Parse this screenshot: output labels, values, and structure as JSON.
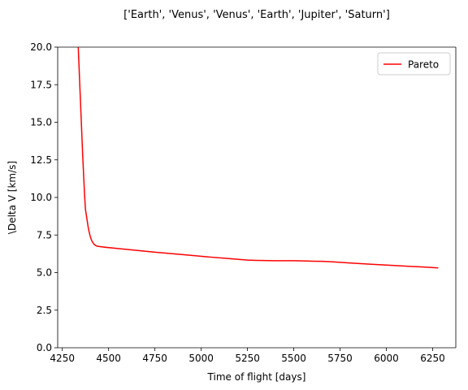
{
  "chart_data": {
    "type": "line",
    "title": "['Earth', 'Venus', 'Venus', 'Earth', 'Jupiter', 'Saturn']",
    "xlabel": "Time of flight [days]",
    "ylabel": "\\Delta V [km/s]",
    "xlim": [
      4225,
      6375
    ],
    "ylim": [
      0,
      20
    ],
    "xticks": [
      4250,
      4500,
      4750,
      5000,
      5250,
      5500,
      5750,
      6000,
      6250
    ],
    "yticks": [
      0.0,
      2.5,
      5.0,
      7.5,
      10.0,
      12.5,
      15.0,
      17.5,
      20.0
    ],
    "xtick_labels": [
      "4250",
      "4500",
      "4750",
      "5000",
      "5250",
      "5500",
      "5750",
      "6000",
      "6250"
    ],
    "ytick_labels": [
      "0.0",
      "2.5",
      "5.0",
      "7.5",
      "10.0",
      "12.5",
      "15.0",
      "17.5",
      "20.0"
    ],
    "grid": false,
    "legend": {
      "placement": "top-right",
      "entries": [
        "Pareto"
      ]
    },
    "series": [
      {
        "name": "Pareto",
        "color": "#ff0000",
        "x": [
          4336,
          4340,
          4345,
          4350,
          4355,
          4360,
          4365,
          4370,
          4375,
          4380,
          4385,
          4390,
          4395,
          4400,
          4405,
          4410,
          4415,
          4420,
          4425,
          4430,
          4440,
          4470,
          4550,
          4650,
          4750,
          4850,
          4950,
          5050,
          5150,
          5250,
          5300,
          5400,
          5500,
          5550,
          5600,
          5650,
          5700,
          5800,
          5900,
          6000,
          6100,
          6200,
          6280
        ],
        "y": [
          20.0,
          18.8,
          17.3,
          15.8,
          14.3,
          12.8,
          11.5,
          10.2,
          9.2,
          8.8,
          8.4,
          8.0,
          7.7,
          7.45,
          7.25,
          7.1,
          7.0,
          6.9,
          6.85,
          6.8,
          6.75,
          6.7,
          6.6,
          6.48,
          6.36,
          6.25,
          6.14,
          6.03,
          5.93,
          5.83,
          5.81,
          5.79,
          5.79,
          5.78,
          5.76,
          5.75,
          5.72,
          5.64,
          5.57,
          5.5,
          5.43,
          5.37,
          5.31
        ]
      }
    ]
  }
}
